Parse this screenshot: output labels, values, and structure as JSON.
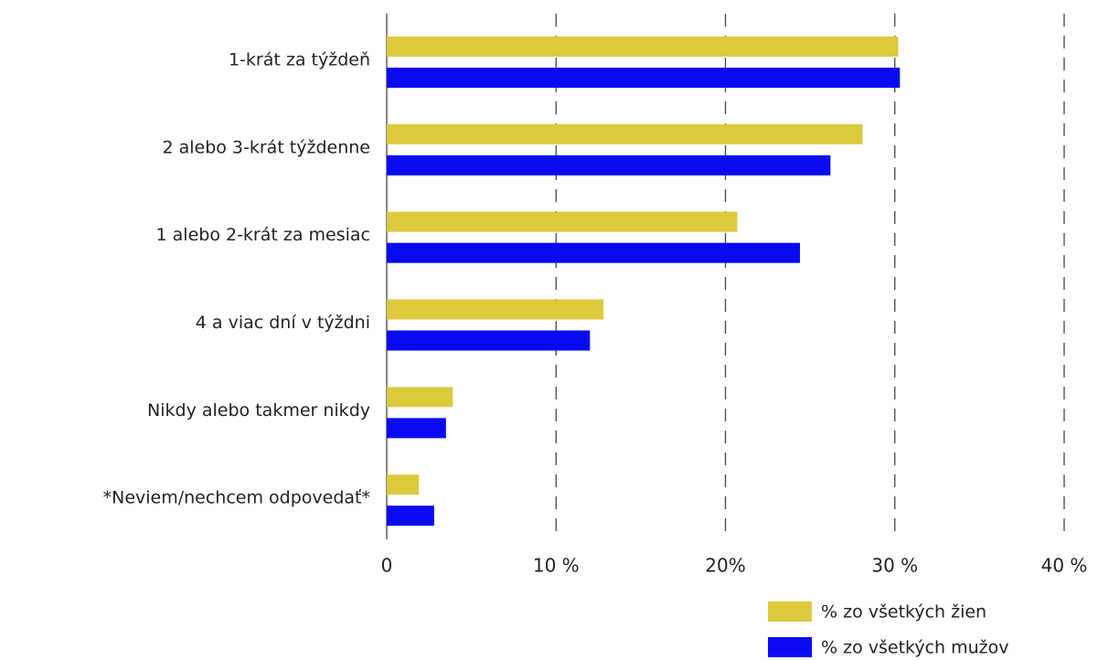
{
  "chart_data": {
    "type": "bar",
    "orientation": "horizontal",
    "categories": [
      "1-krát za týždeň",
      "2 alebo 3-krát týždenne",
      "1 alebo 2-krát za mesiac",
      "4 a viac dní v týždni",
      "Nikdy alebo takmer nikdy",
      "*Neviem/nechcem odpovedať*"
    ],
    "series": [
      {
        "name": "% zo všetkých žien",
        "color": "#dcc93c",
        "values": [
          30.2,
          28.1,
          20.7,
          12.8,
          3.9,
          1.9
        ]
      },
      {
        "name": "% zo všetkých mužov",
        "color": "#0a0af2",
        "values": [
          30.3,
          26.2,
          24.4,
          12.0,
          3.5,
          2.8
        ]
      }
    ],
    "xlim": [
      0,
      40
    ],
    "xticks": [
      0,
      {
        "value": 10,
        "label": "10 %"
      },
      {
        "value": 20,
        "label": "20%"
      },
      {
        "value": 30,
        "label": "30 %"
      },
      {
        "value": 40,
        "label": "40 %"
      }
    ],
    "grid": true,
    "legend": "bottom-right"
  }
}
